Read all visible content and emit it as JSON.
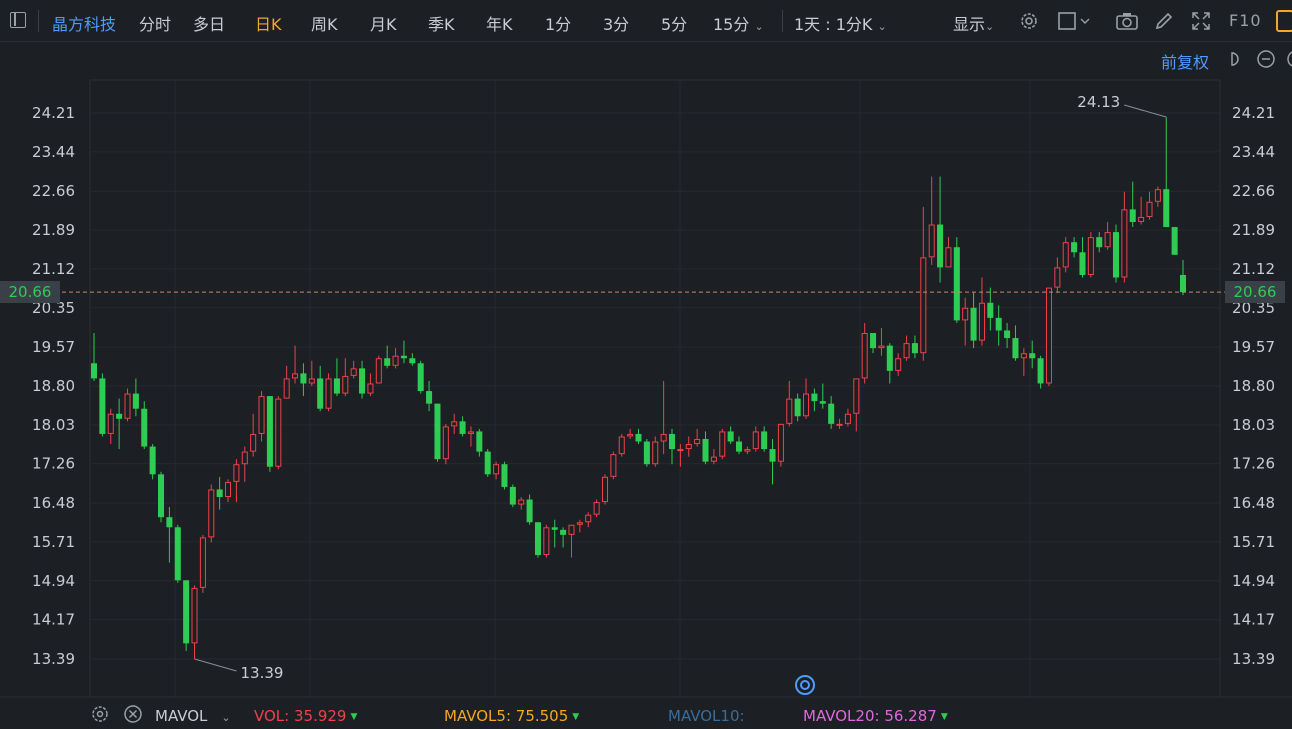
{
  "toolbar": {
    "stock_name": "晶方科技",
    "periods": [
      "分时",
      "多日",
      "日K",
      "周K",
      "月K",
      "季K",
      "年K",
      "1分",
      "3分",
      "5分",
      "15分"
    ],
    "active_period": "日K",
    "interval_select": "1天 : 1分K",
    "display_label": "显示",
    "f10_label": "F10",
    "icons": [
      "panel-icon",
      "settings-gear-icon",
      "checkbox-icon",
      "camera-icon",
      "pencil-icon",
      "fullscreen-icon"
    ]
  },
  "chart_header": {
    "adjust_label": "前复权",
    "icons": [
      "undo-icon",
      "minus-circle-icon"
    ]
  },
  "chart_data": {
    "type": "candlestick",
    "y_ticks": [
      "24.21",
      "23.44",
      "22.66",
      "21.89",
      "21.12",
      "20.35",
      "19.57",
      "18.80",
      "18.03",
      "17.26",
      "16.48",
      "15.71",
      "14.94",
      "14.17",
      "13.39"
    ],
    "ylim": [
      13.39,
      24.21
    ],
    "current_price": "20.66",
    "high_label": "24.13",
    "low_label": "13.39",
    "up_color": "#f0414a",
    "down_color": "#2ecc52",
    "candles": [
      [
        19.25,
        18.95,
        19.85,
        18.9
      ],
      [
        18.95,
        17.85,
        19.05,
        17.8
      ],
      [
        17.85,
        18.25,
        18.35,
        17.65
      ],
      [
        18.25,
        18.15,
        18.55,
        17.55
      ],
      [
        18.15,
        18.65,
        18.75,
        18.1
      ],
      [
        18.65,
        18.35,
        18.95,
        18.2
      ],
      [
        18.35,
        17.6,
        18.5,
        17.55
      ],
      [
        17.6,
        17.05,
        17.65,
        16.95
      ],
      [
        17.05,
        16.2,
        17.1,
        16.1
      ],
      [
        16.2,
        16.0,
        16.4,
        15.3
      ],
      [
        16.0,
        14.95,
        16.05,
        14.9
      ],
      [
        14.95,
        13.7,
        14.95,
        13.55
      ],
      [
        13.7,
        14.8,
        14.85,
        13.39
      ],
      [
        14.8,
        15.8,
        15.85,
        14.7
      ],
      [
        15.8,
        16.75,
        16.85,
        15.7
      ],
      [
        16.75,
        16.6,
        17.0,
        16.35
      ],
      [
        16.6,
        16.9,
        16.95,
        16.5
      ],
      [
        16.9,
        17.25,
        17.35,
        16.5
      ],
      [
        17.25,
        17.5,
        17.6,
        16.9
      ],
      [
        17.5,
        17.85,
        18.25,
        17.4
      ],
      [
        17.85,
        18.6,
        18.7,
        17.7
      ],
      [
        18.6,
        17.2,
        18.6,
        17.1
      ],
      [
        17.2,
        18.55,
        18.6,
        17.15
      ],
      [
        18.55,
        18.95,
        19.2,
        18.55
      ],
      [
        18.95,
        19.05,
        19.6,
        18.85
      ],
      [
        19.05,
        18.85,
        19.25,
        18.6
      ],
      [
        18.85,
        18.95,
        19.3,
        18.8
      ],
      [
        18.95,
        18.35,
        19.2,
        18.3
      ],
      [
        18.35,
        18.95,
        19.05,
        18.3
      ],
      [
        18.95,
        18.65,
        19.35,
        18.6
      ],
      [
        18.65,
        19.0,
        19.35,
        18.6
      ],
      [
        19.0,
        19.15,
        19.3,
        18.95
      ],
      [
        19.15,
        18.65,
        19.3,
        18.55
      ],
      [
        18.65,
        18.85,
        19.05,
        18.6
      ],
      [
        18.85,
        19.35,
        19.4,
        18.85
      ],
      [
        19.35,
        19.2,
        19.6,
        19.15
      ],
      [
        19.2,
        19.4,
        19.55,
        19.15
      ],
      [
        19.4,
        19.35,
        19.7,
        19.25
      ],
      [
        19.35,
        19.25,
        19.45,
        19.2
      ],
      [
        19.25,
        18.7,
        19.3,
        18.65
      ],
      [
        18.7,
        18.45,
        18.9,
        18.3
      ],
      [
        18.45,
        17.35,
        18.45,
        17.3
      ],
      [
        17.35,
        18.0,
        18.05,
        17.25
      ],
      [
        18.0,
        18.1,
        18.25,
        17.85
      ],
      [
        18.1,
        17.85,
        18.2,
        17.8
      ],
      [
        17.85,
        17.9,
        18.0,
        17.6
      ],
      [
        17.9,
        17.5,
        17.95,
        17.4
      ],
      [
        17.5,
        17.05,
        17.55,
        17.0
      ],
      [
        17.05,
        17.25,
        17.3,
        16.95
      ],
      [
        17.25,
        16.8,
        17.3,
        16.75
      ],
      [
        16.8,
        16.45,
        16.85,
        16.4
      ],
      [
        16.45,
        16.55,
        16.6,
        16.35
      ],
      [
        16.55,
        16.1,
        16.65,
        16.05
      ],
      [
        16.1,
        15.45,
        16.1,
        15.4
      ],
      [
        15.45,
        16.0,
        16.05,
        15.4
      ],
      [
        16.0,
        15.95,
        16.15,
        15.6
      ],
      [
        15.95,
        15.85,
        16.0,
        15.6
      ],
      [
        15.85,
        16.05,
        16.05,
        15.4
      ],
      [
        16.05,
        16.1,
        16.15,
        15.9
      ],
      [
        16.1,
        16.25,
        16.3,
        16.0
      ],
      [
        16.25,
        16.5,
        16.55,
        16.2
      ],
      [
        16.5,
        17.0,
        17.05,
        16.45
      ],
      [
        17.0,
        17.45,
        17.5,
        16.95
      ],
      [
        17.45,
        17.8,
        17.85,
        17.4
      ],
      [
        17.8,
        17.85,
        17.95,
        17.75
      ],
      [
        17.85,
        17.7,
        17.95,
        17.65
      ],
      [
        17.7,
        17.25,
        17.75,
        17.2
      ],
      [
        17.25,
        17.7,
        17.8,
        17.2
      ],
      [
        17.7,
        17.85,
        18.9,
        17.45
      ],
      [
        17.85,
        17.55,
        17.95,
        17.25
      ],
      [
        17.55,
        17.55,
        17.65,
        17.2
      ],
      [
        17.55,
        17.65,
        17.8,
        17.4
      ],
      [
        17.65,
        17.75,
        17.95,
        17.6
      ],
      [
        17.75,
        17.3,
        17.9,
        17.25
      ],
      [
        17.3,
        17.4,
        17.55,
        17.25
      ],
      [
        17.4,
        17.9,
        17.95,
        17.35
      ],
      [
        17.9,
        17.7,
        18.0,
        17.65
      ],
      [
        17.7,
        17.5,
        17.8,
        17.45
      ],
      [
        17.5,
        17.55,
        17.6,
        17.45
      ],
      [
        17.55,
        17.9,
        18.0,
        17.5
      ],
      [
        17.9,
        17.55,
        18.0,
        17.5
      ],
      [
        17.55,
        17.3,
        17.75,
        16.85
      ],
      [
        17.3,
        18.05,
        18.05,
        17.2
      ],
      [
        18.05,
        18.55,
        18.9,
        18.0
      ],
      [
        18.55,
        18.2,
        18.65,
        18.1
      ],
      [
        18.2,
        18.65,
        18.95,
        18.15
      ],
      [
        18.65,
        18.5,
        18.75,
        18.3
      ],
      [
        18.5,
        18.45,
        18.85,
        18.35
      ],
      [
        18.45,
        18.05,
        18.6,
        17.95
      ],
      [
        18.05,
        18.05,
        18.15,
        17.95
      ],
      [
        18.05,
        18.25,
        18.35,
        18.0
      ],
      [
        18.25,
        18.95,
        18.95,
        17.9
      ],
      [
        18.95,
        19.85,
        20.05,
        18.85
      ],
      [
        19.85,
        19.55,
        19.85,
        19.45
      ],
      [
        19.55,
        19.6,
        19.95,
        19.4
      ],
      [
        19.6,
        19.1,
        19.65,
        18.85
      ],
      [
        19.1,
        19.35,
        19.45,
        19.0
      ],
      [
        19.35,
        19.65,
        19.8,
        19.3
      ],
      [
        19.65,
        19.45,
        19.8,
        19.35
      ],
      [
        19.45,
        21.35,
        22.35,
        19.3
      ],
      [
        21.35,
        22.0,
        22.95,
        21.2
      ],
      [
        22.0,
        21.15,
        22.95,
        20.85
      ],
      [
        21.15,
        21.55,
        21.75,
        21.35
      ],
      [
        21.55,
        20.1,
        21.75,
        20.05
      ],
      [
        20.1,
        20.35,
        20.55,
        19.6
      ],
      [
        20.35,
        19.7,
        20.65,
        19.55
      ],
      [
        19.7,
        20.45,
        20.95,
        19.6
      ],
      [
        20.45,
        20.15,
        20.75,
        19.9
      ],
      [
        20.15,
        19.9,
        20.4,
        19.6
      ],
      [
        19.9,
        19.75,
        20.05,
        19.55
      ],
      [
        19.75,
        19.35,
        20.0,
        19.3
      ],
      [
        19.35,
        19.45,
        19.55,
        19.0
      ],
      [
        19.45,
        19.35,
        19.7,
        19.15
      ],
      [
        19.35,
        18.85,
        19.4,
        18.75
      ],
      [
        18.85,
        20.75,
        20.75,
        18.8
      ],
      [
        20.75,
        21.15,
        21.35,
        20.65
      ],
      [
        21.15,
        21.65,
        21.75,
        21.05
      ],
      [
        21.65,
        21.45,
        21.75,
        21.35
      ],
      [
        21.45,
        21.0,
        21.75,
        20.95
      ],
      [
        21.0,
        21.75,
        21.85,
        20.95
      ],
      [
        21.75,
        21.55,
        21.85,
        21.45
      ],
      [
        21.55,
        21.85,
        22.05,
        21.5
      ],
      [
        21.85,
        20.95,
        22.0,
        20.85
      ],
      [
        20.95,
        22.3,
        22.65,
        20.85
      ],
      [
        22.3,
        22.05,
        22.85,
        21.95
      ],
      [
        22.05,
        22.15,
        22.55,
        22.0
      ],
      [
        22.15,
        22.45,
        22.65,
        22.1
      ],
      [
        22.45,
        22.7,
        22.75,
        22.35
      ],
      [
        22.7,
        21.95,
        24.13,
        21.95
      ],
      [
        21.95,
        21.4,
        21.95,
        21.4
      ],
      [
        21.0,
        20.66,
        21.3,
        20.6
      ]
    ]
  },
  "indicators": {
    "name": "MAVOL",
    "vol_label": "VOL: 35.929",
    "mavol5_label": "MAVOL5: 75.505",
    "mavol10_label": "MAVOL10:",
    "mavol20_label": "MAVOL20: 56.287",
    "vol_color": "#f0414a",
    "mavol5_color": "#f5a623",
    "mavol10_color": "#3a6e9a",
    "mavol20_color": "#e266e0"
  }
}
